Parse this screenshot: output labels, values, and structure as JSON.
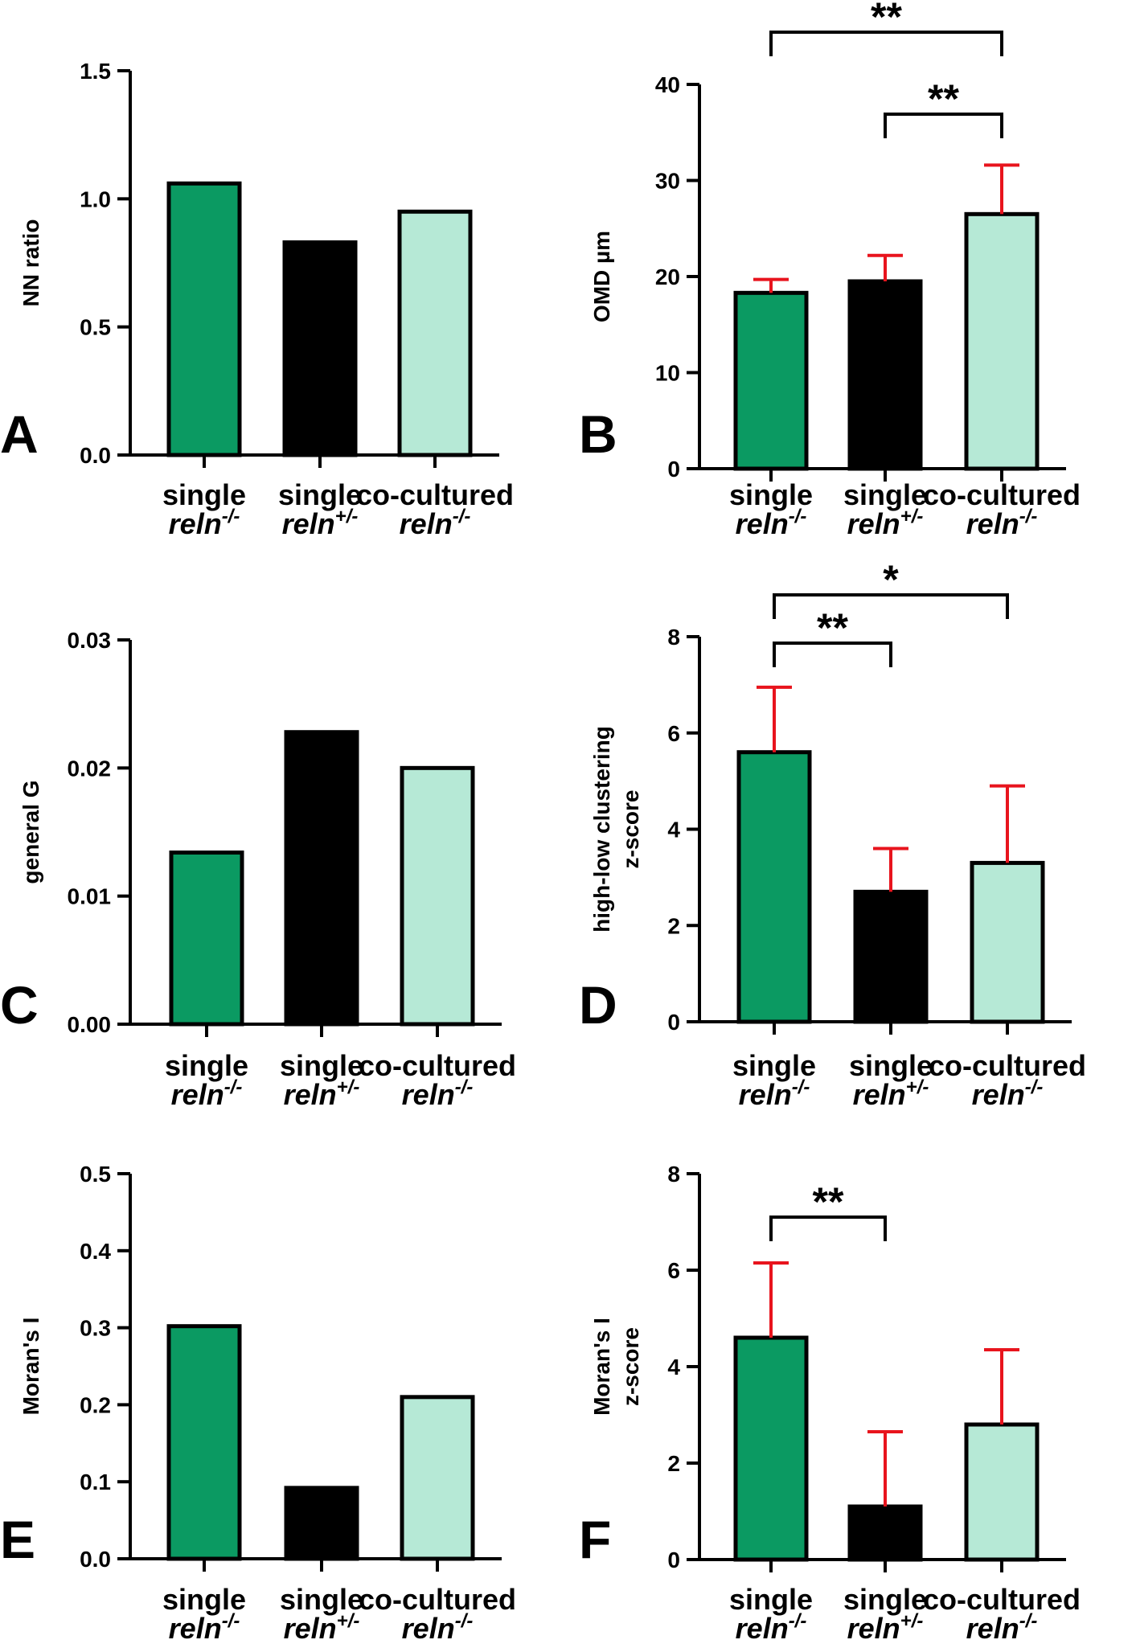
{
  "colors": {
    "single_reln_mm": "#0b9a62",
    "single_reln_pm": "#000000",
    "cocultured_reln_mm": "#b6e9d6",
    "error_bar": "#e8141d",
    "outline": "#000000"
  },
  "chart_data": [
    {
      "panel": "A",
      "type": "bar",
      "ylabel": "NN ratio",
      "ylim": [
        0,
        1.5
      ],
      "yticks": [
        "0.0",
        "0.5",
        "1.0",
        "1.5"
      ],
      "categories": [
        {
          "line1": "single",
          "gene": "reln",
          "sup": "-/-"
        },
        {
          "line1": "single",
          "gene": "reln",
          "sup": "+/-"
        },
        {
          "line1": "co-cultured",
          "gene": "reln",
          "sup": "-/-"
        }
      ],
      "values": [
        1.06,
        0.83,
        0.95
      ],
      "errors": null,
      "significance": []
    },
    {
      "panel": "B",
      "type": "bar",
      "ylabel": "OMD µm",
      "ylim": [
        0,
        40
      ],
      "yticks": [
        "0",
        "10",
        "20",
        "30",
        "40"
      ],
      "categories": [
        {
          "line1": "single",
          "gene": "reln",
          "sup": "-/-"
        },
        {
          "line1": "single",
          "gene": "reln",
          "sup": "+/-"
        },
        {
          "line1": "co-cultured",
          "gene": "reln",
          "sup": "-/-"
        }
      ],
      "values": [
        18.3,
        19.5,
        26.5
      ],
      "errors": [
        1.4,
        2.7,
        5.1
      ],
      "significance": [
        {
          "from": 0,
          "to": 2,
          "label": "**"
        },
        {
          "from": 1,
          "to": 2,
          "label": "**"
        }
      ]
    },
    {
      "panel": "C",
      "type": "bar",
      "ylabel": "general G",
      "ylim": [
        0,
        0.03
      ],
      "yticks": [
        "0.00",
        "0.01",
        "0.02",
        "0.03"
      ],
      "categories": [
        {
          "line1": "single",
          "gene": "reln",
          "sup": "-/-"
        },
        {
          "line1": "single",
          "gene": "reln",
          "sup": "+/-"
        },
        {
          "line1": "co-cultured",
          "gene": "reln",
          "sup": "-/-"
        }
      ],
      "values": [
        0.0134,
        0.0228,
        0.02
      ],
      "errors": null,
      "significance": []
    },
    {
      "panel": "D",
      "type": "bar",
      "ylabel": [
        "high-low clustering",
        "z-score"
      ],
      "ylim": [
        0,
        8
      ],
      "yticks": [
        "0",
        "2",
        "4",
        "6",
        "8"
      ],
      "categories": [
        {
          "line1": "single",
          "gene": "reln",
          "sup": "-/-"
        },
        {
          "line1": "single",
          "gene": "reln",
          "sup": "+/-"
        },
        {
          "line1": "co-cultured",
          "gene": "reln",
          "sup": "-/-"
        }
      ],
      "values": [
        5.6,
        2.7,
        3.3
      ],
      "errors": [
        1.35,
        0.9,
        1.6
      ],
      "significance": [
        {
          "from": 0,
          "to": 1,
          "label": "**"
        },
        {
          "from": 0,
          "to": 2,
          "label": "*"
        }
      ]
    },
    {
      "panel": "E",
      "type": "bar",
      "ylabel": "Moran's I",
      "ylim": [
        0,
        0.5
      ],
      "yticks": [
        "0.0",
        "0.1",
        "0.2",
        "0.3",
        "0.4",
        "0.5"
      ],
      "categories": [
        {
          "line1": "single",
          "gene": "reln",
          "sup": "-/-"
        },
        {
          "line1": "single",
          "gene": "reln",
          "sup": "+/-"
        },
        {
          "line1": "co-cultured",
          "gene": "reln",
          "sup": "-/-"
        }
      ],
      "values": [
        0.302,
        0.092,
        0.21
      ],
      "errors": null,
      "significance": []
    },
    {
      "panel": "F",
      "type": "bar",
      "ylabel": [
        "Moran's I",
        "z-score"
      ],
      "ylim": [
        0,
        8
      ],
      "yticks": [
        "0",
        "2",
        "4",
        "6",
        "8"
      ],
      "categories": [
        {
          "line1": "single",
          "gene": "reln",
          "sup": "-/-"
        },
        {
          "line1": "single",
          "gene": "reln",
          "sup": "+/-"
        },
        {
          "line1": "co-cultured",
          "gene": "reln",
          "sup": "-/-"
        }
      ],
      "values": [
        4.6,
        1.1,
        2.8
      ],
      "errors": [
        1.55,
        1.55,
        1.55
      ],
      "significance": [
        {
          "from": 0,
          "to": 1,
          "label": "**"
        }
      ]
    }
  ]
}
